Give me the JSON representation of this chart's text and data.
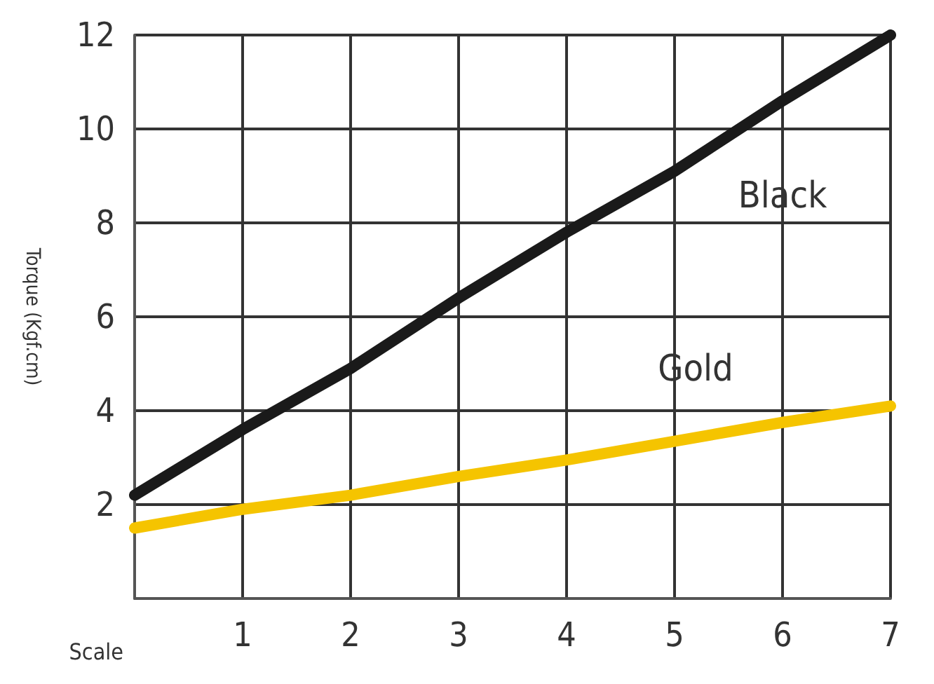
{
  "chart_data": {
    "type": "line",
    "xlabel": "Scale",
    "ylabel": "Torque (Kgf.cm)",
    "x": [
      0,
      1,
      2,
      3,
      4,
      5,
      6,
      7
    ],
    "series": [
      {
        "name": "Black",
        "color": "#1a1a1a",
        "values": [
          2.2,
          3.6,
          4.9,
          6.4,
          7.8,
          9.1,
          10.6,
          12
        ]
      },
      {
        "name": "Gold",
        "color": "#f5c400",
        "values": [
          1.5,
          1.9,
          2.2,
          2.6,
          2.95,
          3.35,
          3.75,
          4.1
        ]
      }
    ],
    "xlim": [
      0,
      7
    ],
    "xticks": [
      {
        "value": 0,
        "label": null
      },
      1,
      2,
      3,
      4,
      5,
      6,
      7
    ],
    "ylim": [
      0,
      12
    ],
    "yticks": [
      {
        "value": 0,
        "label": null
      },
      2,
      4,
      6,
      8,
      10,
      12
    ],
    "grid": true,
    "legend": false,
    "marker": "none",
    "line_style": "solid"
  }
}
